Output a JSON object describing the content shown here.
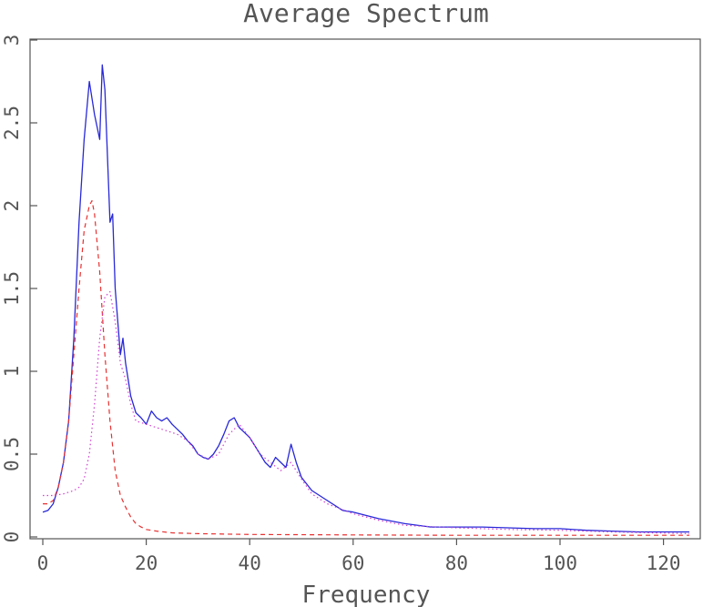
{
  "chart_data": {
    "type": "line",
    "title": "Average Spectrum",
    "xlabel": "Frequency",
    "ylabel": "",
    "xlim": [
      0,
      125
    ],
    "ylim": [
      0,
      3
    ],
    "xticks": [
      "0",
      "20",
      "40",
      "60",
      "80",
      "100",
      "120"
    ],
    "yticks": [
      "0",
      "0.5",
      "1",
      "1.5",
      "2",
      "2.5",
      "3"
    ],
    "grid": false,
    "legend": "none",
    "series": [
      {
        "color": "#2828d8",
        "style": "solid",
        "x": [
          0,
          1,
          2,
          3,
          4,
          5,
          6,
          7,
          8,
          9,
          10,
          11,
          11.5,
          12,
          13,
          13.5,
          14,
          15,
          15.5,
          16,
          17,
          18,
          19,
          20,
          21,
          22,
          23,
          24,
          25,
          26,
          27,
          28,
          29,
          30,
          31,
          32,
          33,
          34,
          35,
          36,
          37,
          38,
          39,
          40,
          41,
          42,
          43,
          44,
          45,
          46,
          47,
          48,
          49,
          50,
          52,
          55,
          58,
          60,
          65,
          70,
          75,
          80,
          85,
          90,
          95,
          100,
          105,
          110,
          115,
          120,
          125
        ],
        "y": [
          0.15,
          0.16,
          0.2,
          0.3,
          0.45,
          0.7,
          1.2,
          1.9,
          2.4,
          2.75,
          2.55,
          2.4,
          2.85,
          2.7,
          1.9,
          1.95,
          1.5,
          1.1,
          1.2,
          1.05,
          0.85,
          0.75,
          0.72,
          0.68,
          0.76,
          0.72,
          0.7,
          0.72,
          0.68,
          0.65,
          0.62,
          0.58,
          0.55,
          0.5,
          0.48,
          0.47,
          0.5,
          0.55,
          0.62,
          0.7,
          0.72,
          0.66,
          0.63,
          0.6,
          0.55,
          0.5,
          0.45,
          0.42,
          0.48,
          0.45,
          0.42,
          0.56,
          0.45,
          0.36,
          0.28,
          0.22,
          0.16,
          0.15,
          0.11,
          0.08,
          0.06,
          0.06,
          0.06,
          0.055,
          0.05,
          0.05,
          0.04,
          0.035,
          0.03,
          0.03,
          0.03
        ]
      },
      {
        "color": "#e83030",
        "style": "dashed",
        "x": [
          0,
          1,
          2,
          3,
          4,
          5,
          6,
          7,
          8,
          9,
          9.5,
          10,
          11,
          12,
          13,
          14,
          15,
          16,
          17,
          18,
          19,
          20,
          22,
          25,
          30,
          40,
          60,
          80,
          100,
          125
        ],
        "y": [
          0.2,
          0.2,
          0.22,
          0.3,
          0.45,
          0.7,
          1.1,
          1.5,
          1.85,
          2.0,
          2.03,
          1.95,
          1.6,
          1.1,
          0.7,
          0.4,
          0.25,
          0.18,
          0.12,
          0.08,
          0.06,
          0.045,
          0.035,
          0.025,
          0.02,
          0.015,
          0.012,
          0.01,
          0.01,
          0.01
        ]
      },
      {
        "color": "#d040d0",
        "style": "dotted",
        "x": [
          0,
          2,
          4,
          6,
          7,
          8,
          9,
          10,
          11,
          12,
          13,
          14,
          15,
          16,
          17,
          18,
          20,
          22,
          24,
          26,
          28,
          30,
          32,
          34,
          36,
          38,
          40,
          42,
          44,
          46,
          48,
          50,
          52,
          55,
          60,
          65,
          70,
          80,
          90,
          100,
          110,
          125
        ],
        "y": [
          0.25,
          0.25,
          0.26,
          0.28,
          0.3,
          0.35,
          0.5,
          0.8,
          1.2,
          1.45,
          1.48,
          1.3,
          1.05,
          0.95,
          0.8,
          0.7,
          0.68,
          0.66,
          0.64,
          0.62,
          0.58,
          0.5,
          0.47,
          0.5,
          0.62,
          0.68,
          0.6,
          0.5,
          0.45,
          0.4,
          0.45,
          0.35,
          0.26,
          0.2,
          0.14,
          0.1,
          0.07,
          0.055,
          0.045,
          0.04,
          0.03,
          0.02
        ]
      }
    ]
  }
}
